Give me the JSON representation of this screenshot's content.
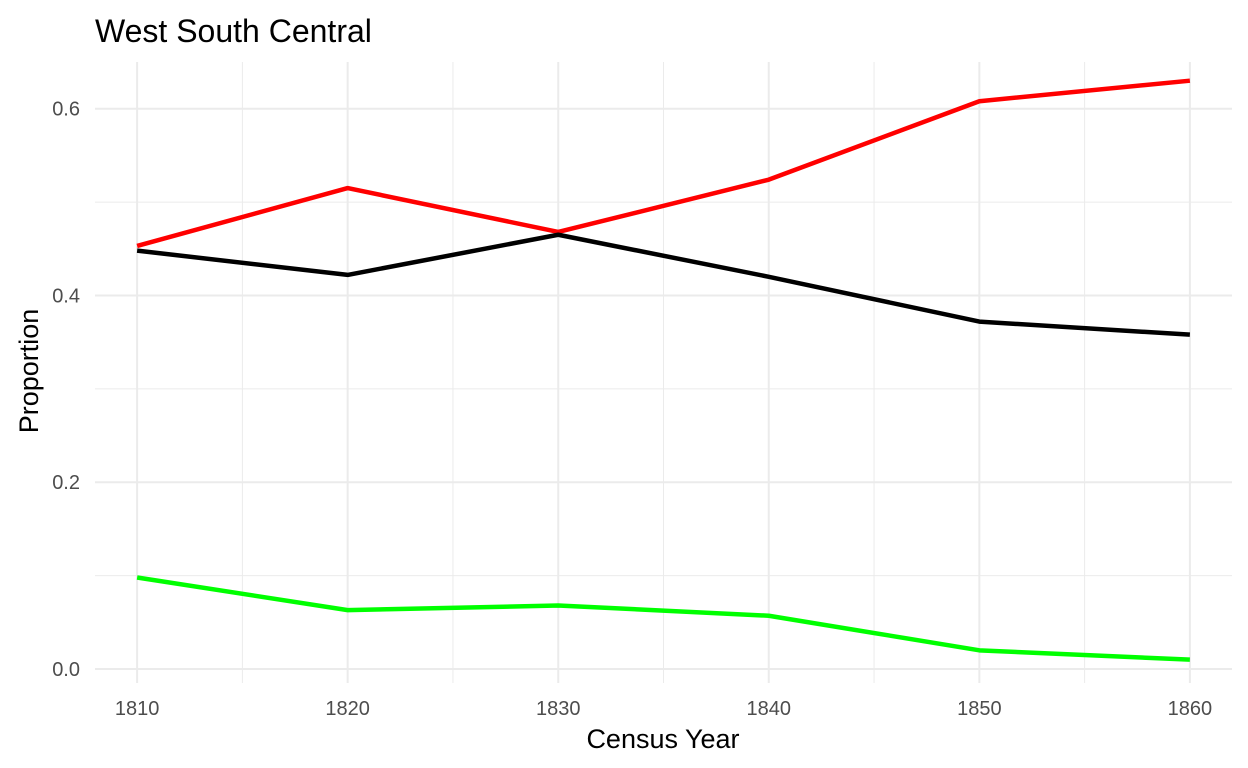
{
  "chart_data": {
    "type": "line",
    "title": "West South Central",
    "xlabel": "Census Year",
    "ylabel": "Proportion",
    "x": [
      1810,
      1820,
      1830,
      1840,
      1850,
      1860
    ],
    "xlim": [
      1808,
      1862
    ],
    "ylim": [
      -0.015,
      0.65
    ],
    "x_ticks": [
      1810,
      1820,
      1830,
      1840,
      1850,
      1860
    ],
    "x_tick_labels": [
      "1810",
      "1820",
      "1830",
      "1840",
      "1850",
      "1860"
    ],
    "x_minor_ticks": [
      1815,
      1825,
      1835,
      1845,
      1855
    ],
    "y_ticks": [
      0.0,
      0.2,
      0.4,
      0.6
    ],
    "y_tick_labels": [
      "0.0",
      "0.2",
      "0.4",
      "0.6"
    ],
    "y_minor_ticks": [
      0.1,
      0.3,
      0.5
    ],
    "grid": true,
    "legend": "none",
    "background": "#ffffff",
    "grid_color": "#ebebeb",
    "series": [
      {
        "color": "#ff0000",
        "values": [
          0.453,
          0.515,
          0.468,
          0.524,
          0.608,
          0.63
        ]
      },
      {
        "color": "#000000",
        "values": [
          0.448,
          0.422,
          0.465,
          0.42,
          0.372,
          0.358
        ]
      },
      {
        "color": "#00ff00",
        "values": [
          0.098,
          0.063,
          0.068,
          0.057,
          0.02,
          0.01
        ]
      }
    ]
  }
}
